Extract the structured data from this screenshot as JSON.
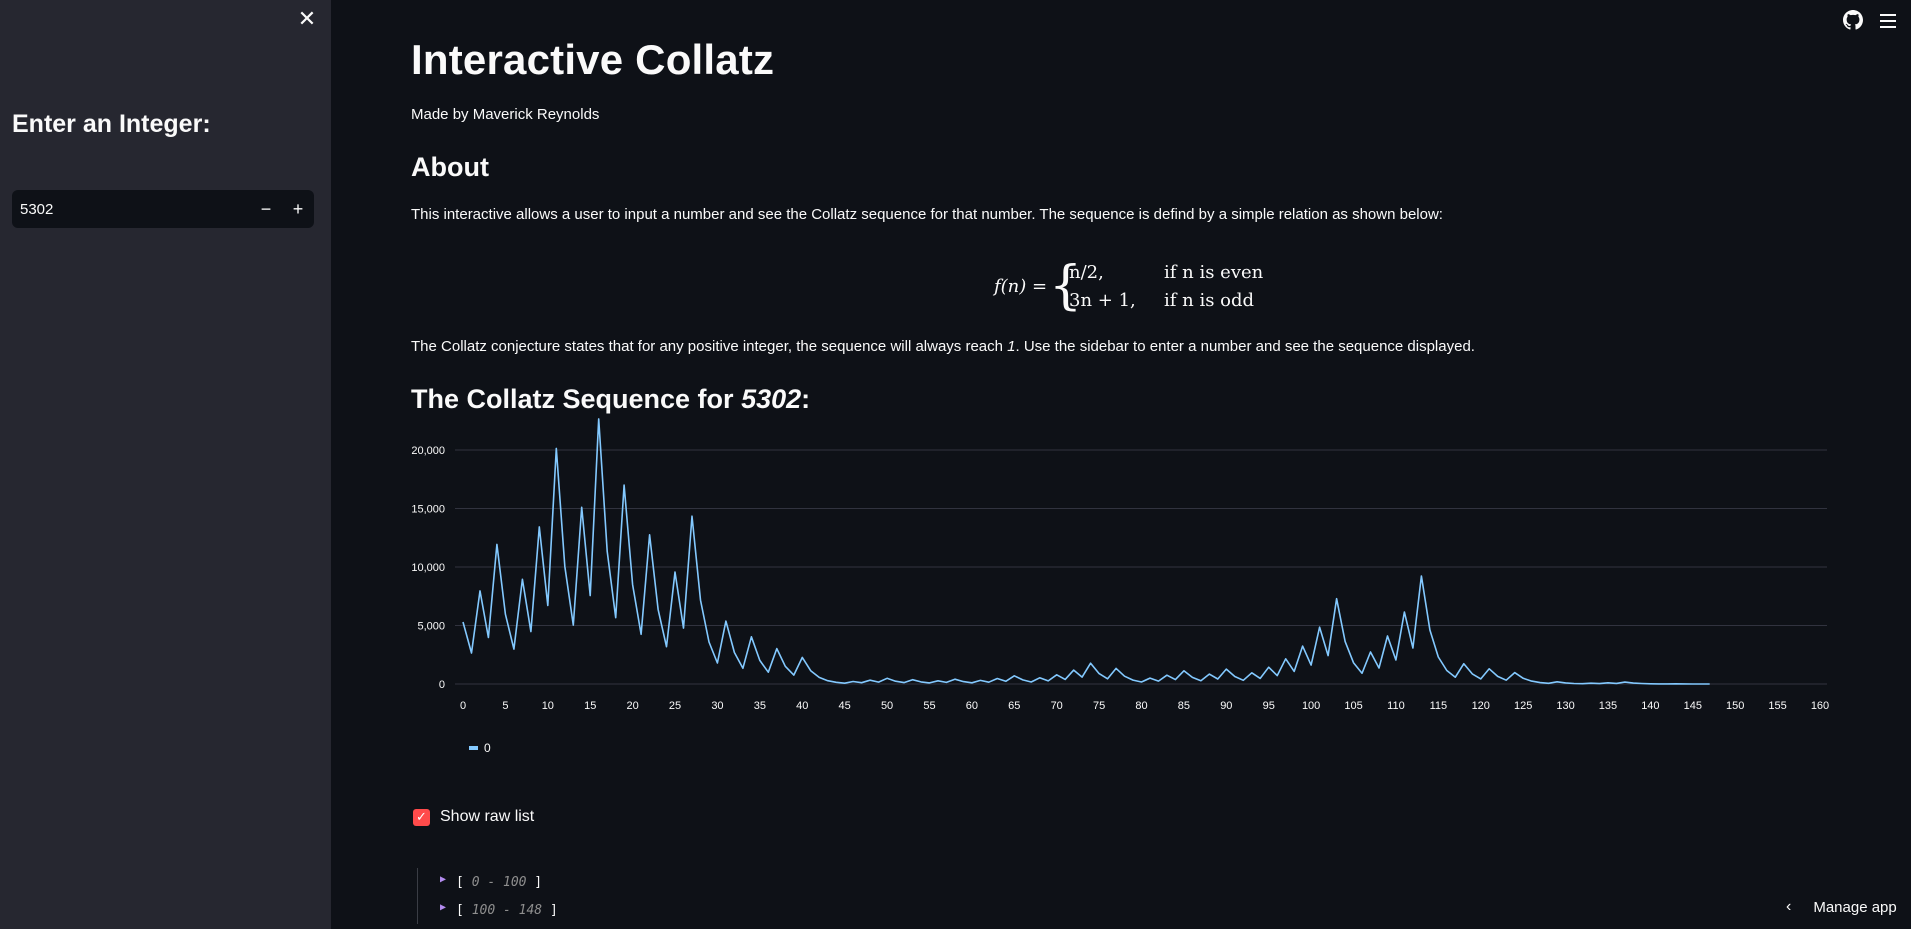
{
  "sidebar": {
    "close_icon": "close-icon",
    "heading": "Enter an Integer:",
    "input_value": "5302",
    "minus_label": "−",
    "plus_label": "+"
  },
  "topbar": {
    "github_icon": "github-icon",
    "menu_icon": "hamburger-menu-icon"
  },
  "main": {
    "title": "Interactive Collatz",
    "byline": "Made by Maverick Reynolds",
    "about_heading": "About",
    "about_text": "This interactive allows a user to input a number and see the Collatz sequence for that number. The sequence is defind by a simple relation as shown below:",
    "formula": {
      "lhs": "f(n) =",
      "case1": "n/2,",
      "case2": "3n + 1,",
      "cond1": "if n is even",
      "cond2": "if n is odd"
    },
    "conjecture_pre": "The Collatz conjecture states that for any positive integer, the sequence will always reach ",
    "conjecture_one": "1",
    "conjecture_post": ". Use the sidebar to enter a number and see the sequence displayed.",
    "sequence_heading_prefix": "The Collatz Sequence for ",
    "sequence_heading_number": "5302",
    "sequence_heading_suffix": ":",
    "show_raw_label": "Show raw list",
    "raw_ranges": [
      "0 - 100",
      "100 - 148"
    ],
    "manage_app": "Manage app"
  },
  "colors": {
    "line": "#83c9ff",
    "checkbox": "#ff4b4b",
    "background": "#0e1117",
    "sidebar": "#262730"
  },
  "chart_data": {
    "type": "line",
    "x_ticks": [
      0,
      5,
      10,
      15,
      20,
      25,
      30,
      35,
      40,
      45,
      50,
      55,
      60,
      65,
      70,
      75,
      80,
      85,
      90,
      95,
      100,
      105,
      110,
      115,
      120,
      125,
      130,
      135,
      140,
      145,
      150,
      155,
      160
    ],
    "y_ticks": [
      0,
      5000,
      10000,
      15000,
      20000
    ],
    "y_tick_labels": [
      "0",
      "5,000",
      "10,000",
      "15,000",
      "20,000"
    ],
    "xlim": [
      0,
      160
    ],
    "ylim": [
      0,
      22000
    ],
    "grid": true,
    "legend": "bottom-left",
    "series": [
      {
        "name": "0",
        "values": [
          5302,
          2651,
          7954,
          3977,
          11932,
          5966,
          2983,
          8950,
          4475,
          13426,
          6713,
          20140,
          10070,
          5035,
          15106,
          7553,
          22660,
          11330,
          5665,
          16996,
          8498,
          4249,
          12748,
          6374,
          3187,
          9562,
          4781,
          14344,
          7172,
          3586,
          1793,
          5380,
          2690,
          1345,
          4036,
          2018,
          1009,
          3028,
          1514,
          757,
          2272,
          1136,
          568,
          284,
          142,
          71,
          214,
          107,
          322,
          161,
          484,
          242,
          121,
          364,
          182,
          91,
          274,
          137,
          412,
          206,
          103,
          310,
          155,
          466,
          233,
          700,
          350,
          175,
          526,
          263,
          790,
          395,
          1186,
          593,
          1780,
          890,
          445,
          1336,
          668,
          334,
          167,
          502,
          251,
          754,
          377,
          1132,
          566,
          283,
          850,
          425,
          1276,
          638,
          319,
          958,
          479,
          1438,
          719,
          2158,
          1079,
          3238,
          1619,
          4858,
          2429,
          7288,
          3644,
          1822,
          911,
          2734,
          1367,
          4102,
          2051,
          6154,
          3077,
          9232,
          4616,
          2308,
          1154,
          577,
          1732,
          866,
          433,
          1300,
          650,
          325,
          976,
          488,
          244,
          122,
          61,
          184,
          92,
          46,
          23,
          70,
          35,
          106,
          53,
          160,
          80,
          40,
          20,
          10,
          5,
          16,
          8,
          4,
          2,
          1
        ]
      }
    ]
  }
}
